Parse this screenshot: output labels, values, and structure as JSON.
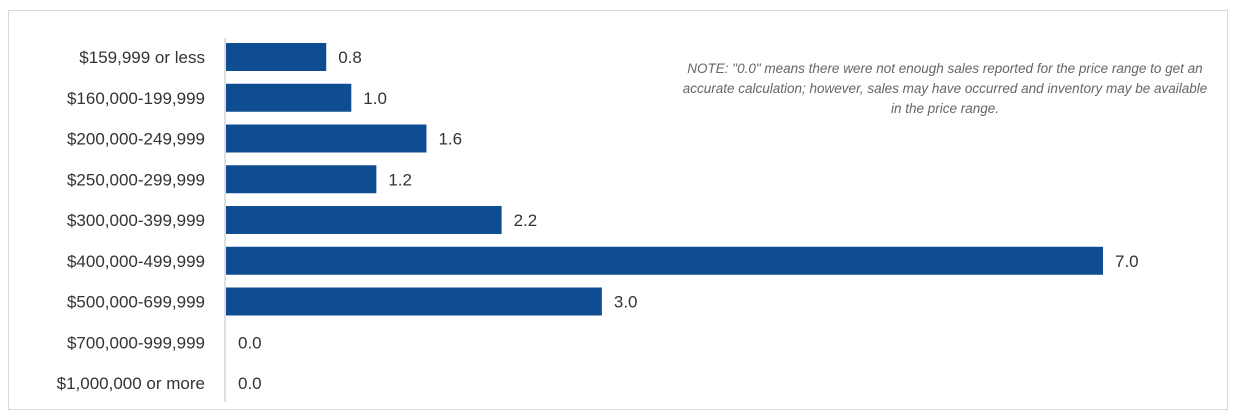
{
  "chart_data": {
    "type": "bar",
    "orientation": "horizontal",
    "categories": [
      "$159,999 or less",
      "$160,000-199,999",
      "$200,000-249,999",
      "$250,000-299,999",
      "$300,000-399,999",
      "$400,000-499,999",
      "$500,000-699,999",
      "$700,000-999,999",
      "$1,000,000 or more"
    ],
    "values": [
      0.8,
      1.0,
      1.6,
      1.2,
      2.2,
      7.0,
      3.0,
      0.0,
      0.0
    ],
    "value_labels": [
      "0.8",
      "1.0",
      "1.6",
      "1.2",
      "2.2",
      "7.0",
      "3.0",
      "0.0",
      "0.0"
    ],
    "title": "",
    "xlabel": "",
    "ylabel": "",
    "xlim": [
      0,
      7.0
    ],
    "grid": false,
    "bar_color": "#0f4d92",
    "annotation": "NOTE: \"0.0\" means there were not enough sales reported for the price range to get an accurate calculation;  however, sales may have occurred and inventory may be available in the price range."
  }
}
